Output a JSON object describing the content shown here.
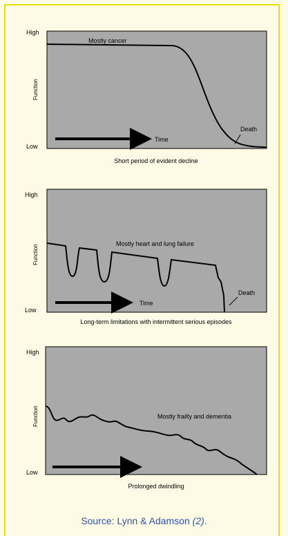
{
  "panels": [
    {
      "id": "cancer",
      "y_high": "High",
      "y_low": "Low",
      "y_label": "Function",
      "curve_label": "Mostly cancer",
      "time_label": "Time",
      "death_label": "Death",
      "caption": "Short period of evident decline"
    },
    {
      "id": "organ-failure",
      "y_high": "High",
      "y_low": "Low",
      "y_label": "Function",
      "curve_label": "Mostly heart and lung failure",
      "time_label": "Time",
      "death_label": "Death",
      "caption": "Long-term limitations with intermittent serious episodes"
    },
    {
      "id": "frailty",
      "y_high": "High",
      "y_low": "Low",
      "y_label": "Function",
      "curve_label": "Mostly frailty and dementia",
      "caption": "Prolonged dwindling"
    }
  ],
  "source": {
    "prefix": "Source: Lynn & Adamson ",
    "ref": "(2)",
    "suffix": "."
  },
  "colors": {
    "panel_fill": "#a9a9a9",
    "frame_border": "#e9e000",
    "source_text": "#2f55a8"
  }
}
